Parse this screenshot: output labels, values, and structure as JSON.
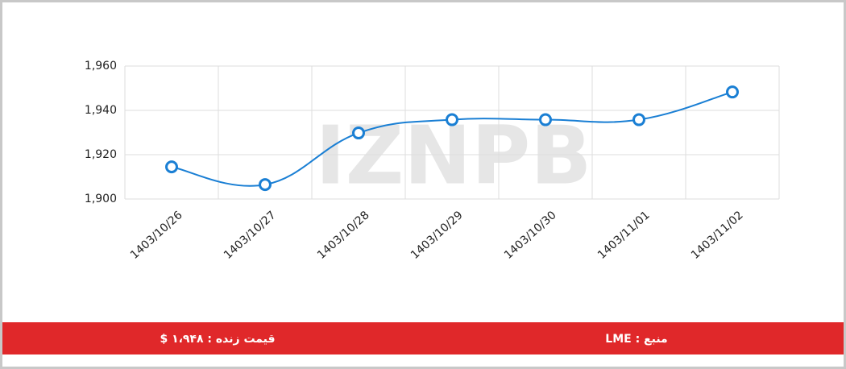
{
  "chart_data": {
    "type": "line",
    "watermark": "IZNPB",
    "categories": [
      "1403/10/26",
      "1403/10/27",
      "1403/10/28",
      "1403/10/29",
      "1403/10/30",
      "1403/11/01",
      "1403/11/02"
    ],
    "series": [
      {
        "color": "#1a7fd4",
        "values": [
          1914.5,
          1906.5,
          1929.8,
          1935.8,
          1935.8,
          1935.8,
          1948.3
        ]
      }
    ],
    "ylim": [
      1900,
      1960
    ],
    "yticks": [
      {
        "value": 1900,
        "label": "1,900"
      },
      {
        "value": 1920,
        "label": "1,920"
      },
      {
        "value": 1940,
        "label": "1,940"
      },
      {
        "value": 1960,
        "label": "1,960"
      }
    ],
    "grid": true
  },
  "footer": {
    "live_price": "قیمت زنده : ۱،۹۴۸ $",
    "source": "منبع : LME"
  }
}
